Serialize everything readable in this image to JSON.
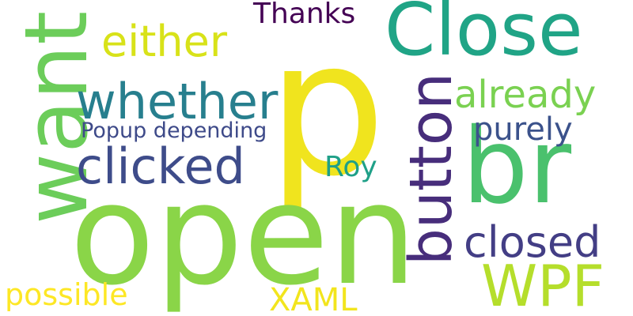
{
  "cloud": {
    "words": [
      {
        "text": "p",
        "color": "#f0e41e",
        "orientation": "horizontal"
      },
      {
        "text": "open",
        "color": "#8ad548",
        "orientation": "horizontal"
      },
      {
        "text": "want",
        "color": "#6ccd5a",
        "orientation": "vertical"
      },
      {
        "text": "Close",
        "color": "#20a486",
        "orientation": "horizontal"
      },
      {
        "text": "br",
        "color": "#4ac16d",
        "orientation": "horizontal"
      },
      {
        "text": "button",
        "color": "#472d7b",
        "orientation": "vertical"
      },
      {
        "text": "whether",
        "color": "#277f8e",
        "orientation": "horizontal"
      },
      {
        "text": "clicked",
        "color": "#3e4c8a",
        "orientation": "horizontal"
      },
      {
        "text": "either",
        "color": "#d8e219",
        "orientation": "horizontal"
      },
      {
        "text": "already",
        "color": "#7ad151",
        "orientation": "horizontal"
      },
      {
        "text": "closed",
        "color": "#433e85",
        "orientation": "horizontal"
      },
      {
        "text": "WPF",
        "color": "#b5de2b",
        "orientation": "horizontal"
      },
      {
        "text": "purely",
        "color": "#3b528b",
        "orientation": "horizontal"
      },
      {
        "text": "Thanks",
        "color": "#440154",
        "orientation": "horizontal"
      },
      {
        "text": "Popup depending",
        "color": "#3e4a89",
        "orientation": "horizontal"
      },
      {
        "text": "Roy",
        "color": "#1fa088",
        "orientation": "horizontal"
      },
      {
        "text": "possible",
        "color": "#fde725",
        "orientation": "horizontal"
      },
      {
        "text": "XAML",
        "color": "#f2e51d",
        "orientation": "horizontal"
      }
    ]
  }
}
